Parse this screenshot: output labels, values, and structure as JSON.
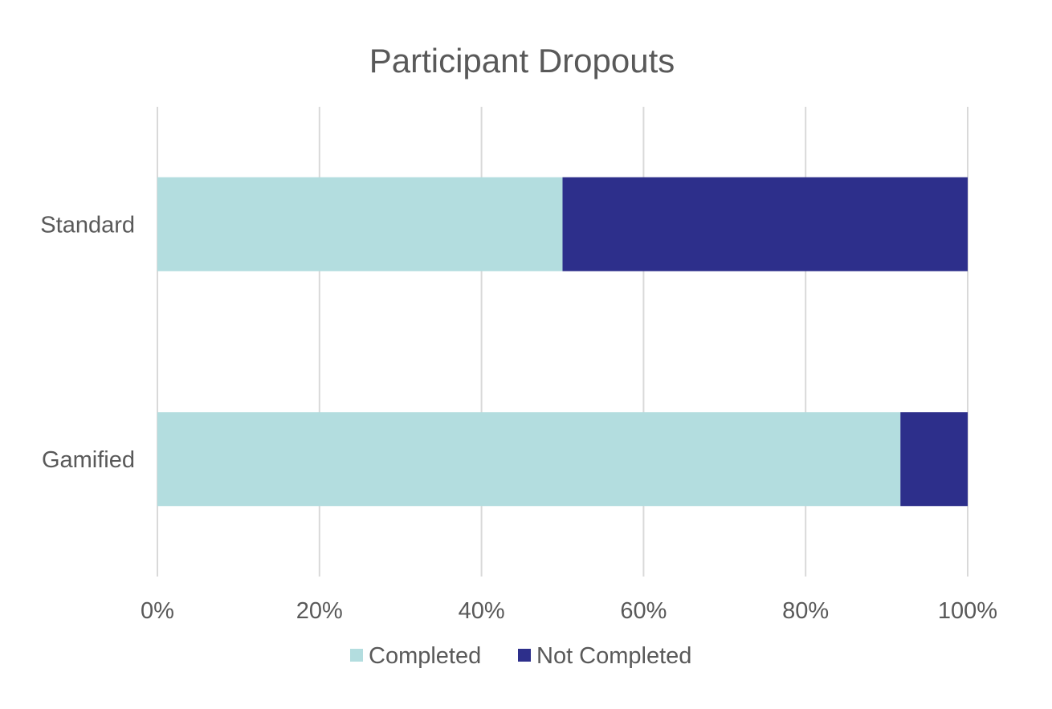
{
  "chart_data": {
    "type": "bar",
    "orientation": "horizontal",
    "stacked": "percent",
    "title": "Participant Dropouts",
    "categories": [
      "Standard",
      "Gamified"
    ],
    "series": [
      {
        "name": "Completed",
        "values": [
          50,
          91.7
        ],
        "color": "#b3dddf"
      },
      {
        "name": "Not Completed",
        "values": [
          50,
          8.3
        ],
        "color": "#2d2f8b"
      }
    ],
    "xlim": [
      0,
      100
    ],
    "xticks": [
      "0%",
      "20%",
      "40%",
      "60%",
      "80%",
      "100%"
    ],
    "xlabel": "",
    "ylabel": "",
    "grid": true,
    "legend_position": "bottom"
  }
}
